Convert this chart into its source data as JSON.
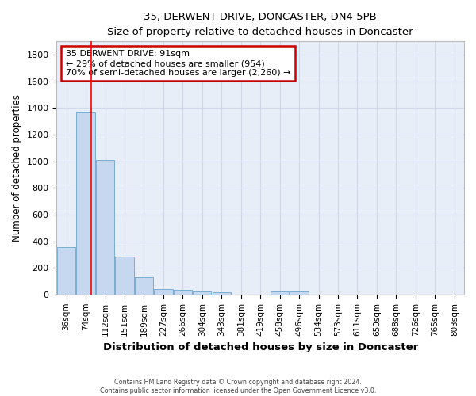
{
  "title1": "35, DERWENT DRIVE, DONCASTER, DN4 5PB",
  "title2": "Size of property relative to detached houses in Doncaster",
  "xlabel": "Distribution of detached houses by size in Doncaster",
  "ylabel": "Number of detached properties",
  "categories": [
    "36sqm",
    "74sqm",
    "112sqm",
    "151sqm",
    "189sqm",
    "227sqm",
    "266sqm",
    "304sqm",
    "343sqm",
    "381sqm",
    "419sqm",
    "458sqm",
    "496sqm",
    "534sqm",
    "573sqm",
    "611sqm",
    "650sqm",
    "688sqm",
    "726sqm",
    "765sqm",
    "803sqm"
  ],
  "values": [
    355,
    1365,
    1010,
    285,
    130,
    42,
    35,
    22,
    15,
    0,
    0,
    20,
    20,
    0,
    0,
    0,
    0,
    0,
    0,
    0,
    0
  ],
  "bar_color": "#c5d8f0",
  "bar_edge_color": "#7aadd4",
  "red_line_x": 1.3,
  "annotation_title": "35 DERWENT DRIVE: 91sqm",
  "annotation_line1": "← 29% of detached houses are smaller (954)",
  "annotation_line2": "70% of semi-detached houses are larger (2,260) →",
  "annotation_box_color": "#ffffff",
  "annotation_box_edge_color": "#cc0000",
  "ylim": [
    0,
    1900
  ],
  "yticks": [
    0,
    200,
    400,
    600,
    800,
    1000,
    1200,
    1400,
    1600,
    1800
  ],
  "grid_color": "#d0d8e8",
  "background_color": "#e8eef8",
  "footer1": "Contains HM Land Registry data © Crown copyright and database right 2024.",
  "footer2": "Contains public sector information licensed under the Open Government Licence v3.0."
}
